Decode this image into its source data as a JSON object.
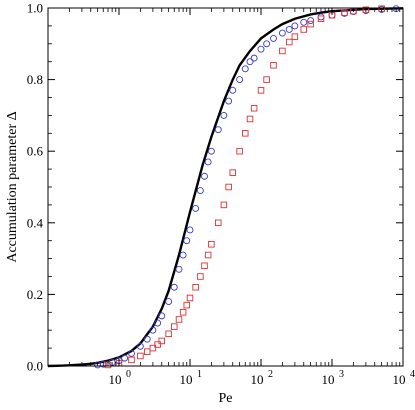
{
  "chart_data": {
    "type": "scatter",
    "xlabel": "Pe",
    "ylabel": "Accumulation parameter Δ",
    "x_scale": "log",
    "xlim": [
      0.1,
      10000
    ],
    "ylim": [
      0,
      1
    ],
    "grid": false,
    "x_ticks": [
      {
        "value": 1,
        "base": "10",
        "exp": "0"
      },
      {
        "value": 10,
        "base": "10",
        "exp": "1"
      },
      {
        "value": 100,
        "base": "10",
        "exp": "2"
      },
      {
        "value": 1000,
        "base": "10",
        "exp": "3"
      },
      {
        "value": 10000,
        "base": "10",
        "exp": "4"
      }
    ],
    "y_ticks": [
      {
        "value": 0,
        "label": "0.0"
      },
      {
        "value": 0.2,
        "label": "0.2"
      },
      {
        "value": 0.4,
        "label": "0.4"
      },
      {
        "value": 0.6,
        "label": "0.6"
      },
      {
        "value": 0.8,
        "label": "0.8"
      },
      {
        "value": 1,
        "label": "1.0"
      }
    ],
    "colors": {
      "line": "#000000",
      "circles": "#3a3acc",
      "squares": "#e03030"
    },
    "series": [
      {
        "kind": "line",
        "x": [
          0.1,
          0.15,
          0.2,
          0.3,
          0.4,
          0.5,
          0.7,
          1,
          1.5,
          2,
          3,
          4,
          5,
          7,
          10,
          15,
          20,
          30,
          40,
          50,
          70,
          100,
          150,
          200,
          300,
          500,
          700,
          1000,
          2000,
          3000,
          5000,
          10000
        ],
        "y": [
          0.0,
          0.001,
          0.002,
          0.004,
          0.006,
          0.009,
          0.015,
          0.024,
          0.042,
          0.063,
          0.11,
          0.16,
          0.21,
          0.31,
          0.43,
          0.56,
          0.64,
          0.74,
          0.8,
          0.84,
          0.88,
          0.915,
          0.94,
          0.955,
          0.97,
          0.982,
          0.987,
          0.991,
          0.995,
          0.997,
          0.998,
          0.999
        ]
      },
      {
        "kind": "circles",
        "x": [
          0.5,
          0.6,
          0.8,
          1,
          1.2,
          1.5,
          2,
          2.5,
          3,
          3.5,
          4,
          5,
          6,
          7,
          8,
          9,
          10,
          12,
          14,
          16,
          18,
          20,
          25,
          30,
          35,
          40,
          50,
          60,
          70,
          80,
          100,
          120,
          150,
          200,
          250,
          300,
          400,
          500,
          700,
          1000,
          1500,
          2000,
          3000,
          5000,
          8000
        ],
        "y": [
          0.003,
          0.005,
          0.01,
          0.015,
          0.022,
          0.035,
          0.055,
          0.075,
          0.1,
          0.12,
          0.14,
          0.18,
          0.22,
          0.27,
          0.31,
          0.35,
          0.38,
          0.44,
          0.49,
          0.53,
          0.57,
          0.6,
          0.66,
          0.7,
          0.74,
          0.77,
          0.8,
          0.83,
          0.85,
          0.86,
          0.885,
          0.9,
          0.915,
          0.93,
          0.94,
          0.95,
          0.96,
          0.965,
          0.975,
          0.98,
          0.985,
          0.99,
          0.993,
          0.996,
          0.998
        ]
      },
      {
        "kind": "squares",
        "x": [
          0.7,
          1,
          1.5,
          2,
          2.5,
          3,
          3.5,
          4,
          5,
          6,
          7,
          8,
          9,
          10,
          12,
          14,
          16,
          18,
          20,
          25,
          30,
          35,
          40,
          50,
          60,
          70,
          80,
          100,
          120,
          150,
          200,
          250,
          300,
          400,
          500,
          700,
          1000,
          1500,
          2000,
          3000,
          5000
        ],
        "y": [
          0.003,
          0.008,
          0.017,
          0.028,
          0.04,
          0.05,
          0.06,
          0.07,
          0.09,
          0.11,
          0.13,
          0.15,
          0.17,
          0.19,
          0.22,
          0.25,
          0.28,
          0.31,
          0.34,
          0.4,
          0.45,
          0.5,
          0.54,
          0.6,
          0.65,
          0.69,
          0.72,
          0.77,
          0.8,
          0.84,
          0.88,
          0.905,
          0.92,
          0.94,
          0.955,
          0.97,
          0.98,
          0.987,
          0.991,
          0.995,
          0.998
        ]
      }
    ]
  }
}
